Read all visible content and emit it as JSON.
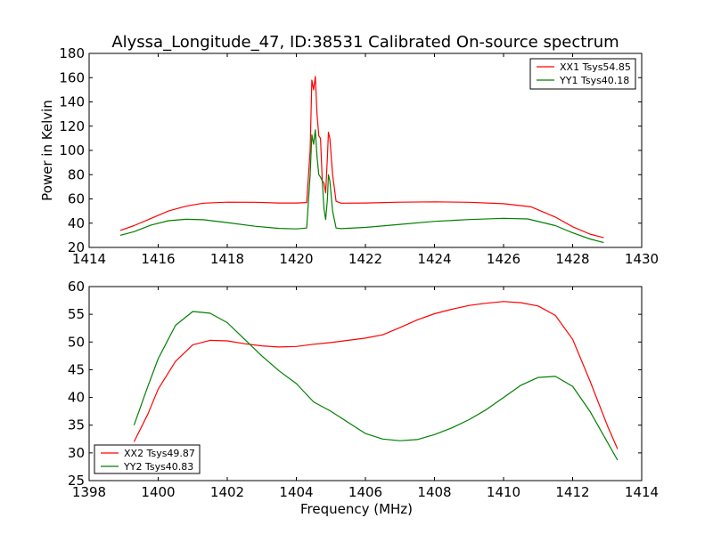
{
  "title": "Alyssa_Longitude_47, ID:38531 Calibrated On-source spectrum",
  "chart_data": [
    {
      "type": "line",
      "ylabel": "Power in Kelvin",
      "xlabel": "",
      "xlim": [
        1414,
        1430
      ],
      "ylim": [
        20,
        180
      ],
      "xticks": [
        1414,
        1416,
        1418,
        1420,
        1422,
        1424,
        1426,
        1428,
        1430
      ],
      "yticks": [
        20,
        40,
        60,
        80,
        100,
        120,
        140,
        160,
        180
      ],
      "legend": "top-right",
      "series": [
        {
          "name": "XX1 Tsys54.85",
          "color": "#ff0000",
          "points": [
            [
              1414.9,
              34
            ],
            [
              1415.3,
              38
            ],
            [
              1415.8,
              44
            ],
            [
              1416.3,
              50
            ],
            [
              1416.8,
              54
            ],
            [
              1417.3,
              56.5
            ],
            [
              1418.0,
              57.3
            ],
            [
              1418.8,
              57.2
            ],
            [
              1419.5,
              56.6
            ],
            [
              1420.0,
              56.6
            ],
            [
              1420.3,
              57
            ],
            [
              1420.4,
              100
            ],
            [
              1420.45,
              158
            ],
            [
              1420.5,
              150
            ],
            [
              1420.55,
              161
            ],
            [
              1420.6,
              130
            ],
            [
              1420.65,
              112
            ],
            [
              1420.7,
              110
            ],
            [
              1420.75,
              75
            ],
            [
              1420.8,
              73
            ],
            [
              1420.85,
              65
            ],
            [
              1420.9,
              95
            ],
            [
              1420.93,
              115
            ],
            [
              1420.97,
              110
            ],
            [
              1421.05,
              80
            ],
            [
              1421.15,
              58
            ],
            [
              1421.3,
              56.5
            ],
            [
              1422.0,
              56.6
            ],
            [
              1423.0,
              57.3
            ],
            [
              1424.0,
              57.6
            ],
            [
              1425.0,
              57.2
            ],
            [
              1426.0,
              56.0
            ],
            [
              1426.8,
              53.5
            ],
            [
              1427.5,
              45
            ],
            [
              1428.0,
              37
            ],
            [
              1428.5,
              31
            ],
            [
              1428.9,
              28
            ]
          ]
        },
        {
          "name": "YY1 Tsys40.18",
          "color": "#008000",
          "points": [
            [
              1414.9,
              30
            ],
            [
              1415.3,
              33
            ],
            [
              1415.8,
              38.5
            ],
            [
              1416.3,
              42
            ],
            [
              1416.8,
              43.2
            ],
            [
              1417.3,
              42.8
            ],
            [
              1418.0,
              40.5
            ],
            [
              1418.8,
              37.5
            ],
            [
              1419.5,
              35.7
            ],
            [
              1420.0,
              35.3
            ],
            [
              1420.3,
              36
            ],
            [
              1420.4,
              80
            ],
            [
              1420.45,
              113
            ],
            [
              1420.5,
              105
            ],
            [
              1420.55,
              117
            ],
            [
              1420.6,
              95
            ],
            [
              1420.65,
              80
            ],
            [
              1420.7,
              78
            ],
            [
              1420.75,
              75
            ],
            [
              1420.8,
              52
            ],
            [
              1420.85,
              43
            ],
            [
              1420.9,
              60
            ],
            [
              1420.93,
              80
            ],
            [
              1420.97,
              75
            ],
            [
              1421.05,
              50
            ],
            [
              1421.15,
              36
            ],
            [
              1421.3,
              35.5
            ],
            [
              1422.0,
              36.5
            ],
            [
              1423.0,
              39
            ],
            [
              1424.0,
              41.5
            ],
            [
              1425.0,
              43
            ],
            [
              1426.0,
              44
            ],
            [
              1426.7,
              43.5
            ],
            [
              1427.5,
              38
            ],
            [
              1428.0,
              32
            ],
            [
              1428.5,
              27
            ],
            [
              1428.9,
              24
            ]
          ]
        }
      ]
    },
    {
      "type": "line",
      "ylabel": "",
      "xlabel": "Frequency (MHz)",
      "xlim": [
        1398,
        1414
      ],
      "ylim": [
        25,
        60
      ],
      "xticks": [
        1398,
        1400,
        1402,
        1404,
        1406,
        1408,
        1410,
        1412,
        1414
      ],
      "yticks": [
        25,
        30,
        35,
        40,
        45,
        50,
        55,
        60
      ],
      "legend": "bottom-left",
      "series": [
        {
          "name": "XX2 Tsys49.87",
          "color": "#ff0000",
          "points": [
            [
              1399.3,
              32
            ],
            [
              1399.7,
              37
            ],
            [
              1400.0,
              41.5
            ],
            [
              1400.5,
              46.5
            ],
            [
              1401.0,
              49.5
            ],
            [
              1401.5,
              50.3
            ],
            [
              1402.0,
              50.2
            ],
            [
              1402.5,
              49.7
            ],
            [
              1403.0,
              49.3
            ],
            [
              1403.5,
              49.1
            ],
            [
              1404.0,
              49.2
            ],
            [
              1404.5,
              49.6
            ],
            [
              1405.0,
              49.9
            ],
            [
              1405.5,
              50.3
            ],
            [
              1406.0,
              50.7
            ],
            [
              1406.5,
              51.3
            ],
            [
              1407.0,
              52.6
            ],
            [
              1407.5,
              54.0
            ],
            [
              1408.0,
              55.1
            ],
            [
              1408.5,
              55.9
            ],
            [
              1409.0,
              56.6
            ],
            [
              1409.5,
              57.0
            ],
            [
              1410.0,
              57.3
            ],
            [
              1410.5,
              57.1
            ],
            [
              1411.0,
              56.5
            ],
            [
              1411.5,
              54.8
            ],
            [
              1412.0,
              50.5
            ],
            [
              1412.5,
              43
            ],
            [
              1413.0,
              35
            ],
            [
              1413.3,
              30.7
            ]
          ]
        },
        {
          "name": "YY2 Tsys40.83",
          "color": "#008000",
          "points": [
            [
              1399.3,
              35
            ],
            [
              1399.7,
              42
            ],
            [
              1400.0,
              47
            ],
            [
              1400.5,
              53
            ],
            [
              1401.0,
              55.5
            ],
            [
              1401.5,
              55.2
            ],
            [
              1402.0,
              53.5
            ],
            [
              1402.5,
              50.5
            ],
            [
              1403.0,
              47.5
            ],
            [
              1403.5,
              44.8
            ],
            [
              1404.0,
              42.5
            ],
            [
              1404.5,
              39.2
            ],
            [
              1405.0,
              37.5
            ],
            [
              1405.5,
              35.5
            ],
            [
              1406.0,
              33.5
            ],
            [
              1406.5,
              32.5
            ],
            [
              1407.0,
              32.2
            ],
            [
              1407.5,
              32.4
            ],
            [
              1408.0,
              33.3
            ],
            [
              1408.5,
              34.5
            ],
            [
              1409.0,
              36.0
            ],
            [
              1409.5,
              37.8
            ],
            [
              1410.0,
              40.0
            ],
            [
              1410.5,
              42.2
            ],
            [
              1411.0,
              43.6
            ],
            [
              1411.5,
              43.8
            ],
            [
              1412.0,
              42.0
            ],
            [
              1412.5,
              37.5
            ],
            [
              1413.0,
              32
            ],
            [
              1413.3,
              28.7
            ]
          ]
        }
      ]
    }
  ]
}
